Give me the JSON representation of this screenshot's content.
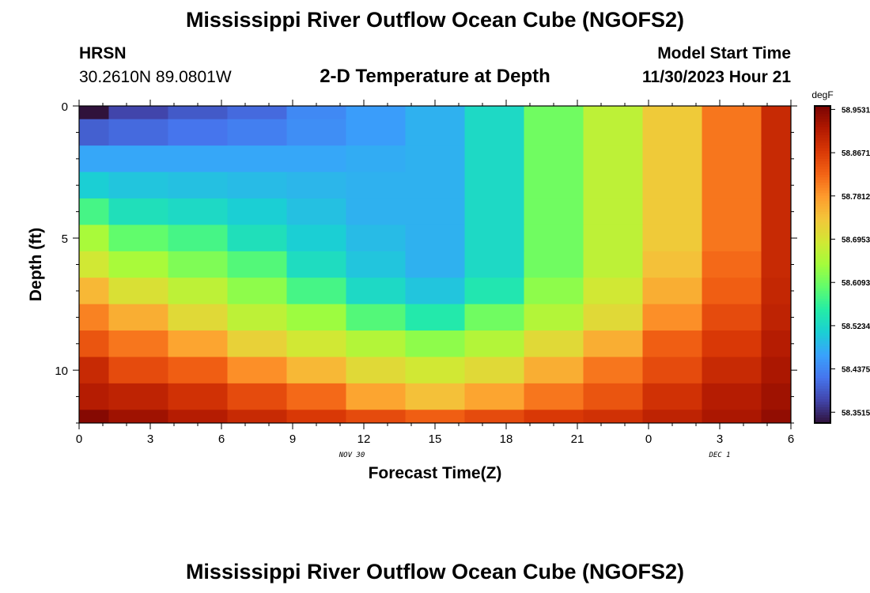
{
  "header": {
    "title": "Mississippi River Outflow Ocean Cube (NGOFS2)",
    "station": "HRSN",
    "coords": "30.2610N  89.0801W",
    "subtitle": "2-D Temperature at Depth",
    "model_start_label": "Model Start Time",
    "model_start_value": "11/30/2023 Hour 21"
  },
  "footer": {
    "title": "Mississippi River Outflow Ocean Cube (NGOFS2)"
  },
  "chart_data": {
    "type": "heatmap",
    "title": "2-D Temperature at Depth",
    "xlabel": "Forecast Time(Z)",
    "ylabel": "Depth (ft)",
    "x_ticks": [
      "0",
      "3",
      "6",
      "9",
      "12",
      "15",
      "18",
      "21",
      "0",
      "3",
      "6"
    ],
    "x_tick_hours": [
      0,
      3,
      6,
      9,
      12,
      15,
      18,
      21,
      24,
      27,
      30
    ],
    "date_labels": [
      {
        "text": "NOV 30",
        "hour": 11.5
      },
      {
        "text": "DEC 1",
        "hour": 27.0
      }
    ],
    "y_ticks": [
      "0",
      "5",
      "10"
    ],
    "y_tick_values": [
      0,
      5,
      10
    ],
    "xlim": [
      0,
      30
    ],
    "ylim": [
      0,
      12
    ],
    "column_edges_hours": [
      0,
      1.25,
      3.75,
      6.25,
      8.75,
      11.25,
      13.75,
      16.25,
      18.75,
      21.25,
      23.75,
      26.25,
      28.75,
      30
    ],
    "depth_edges_ft": [
      0,
      0.5,
      1.5,
      2.5,
      3.5,
      4.5,
      5.5,
      6.5,
      7.5,
      8.5,
      9.5,
      10.5,
      11.5,
      12
    ],
    "values_degF": [
      [
        58.33,
        58.375,
        58.395,
        58.41,
        58.44,
        58.46,
        58.48,
        58.525,
        58.61,
        58.67,
        58.73,
        58.81,
        58.89
      ],
      [
        58.4,
        58.41,
        58.42,
        58.43,
        58.445,
        58.46,
        58.48,
        58.525,
        58.61,
        58.67,
        58.73,
        58.81,
        58.89
      ],
      [
        58.47,
        58.47,
        58.47,
        58.47,
        58.47,
        58.475,
        58.48,
        58.525,
        58.61,
        58.67,
        58.73,
        58.81,
        58.89
      ],
      [
        58.51,
        58.5,
        58.495,
        58.49,
        58.485,
        58.48,
        58.48,
        58.525,
        58.61,
        58.67,
        58.73,
        58.81,
        58.89
      ],
      [
        58.58,
        58.535,
        58.525,
        58.51,
        58.495,
        58.48,
        58.48,
        58.525,
        58.61,
        58.67,
        58.73,
        58.81,
        58.89
      ],
      [
        58.65,
        58.6,
        58.58,
        58.535,
        58.51,
        58.49,
        58.48,
        58.525,
        58.61,
        58.67,
        58.73,
        58.81,
        58.89
      ],
      [
        58.69,
        58.65,
        58.62,
        58.59,
        58.53,
        58.5,
        58.48,
        58.525,
        58.61,
        58.67,
        58.74,
        58.82,
        58.89
      ],
      [
        58.75,
        58.7,
        58.67,
        58.63,
        58.58,
        58.525,
        58.5,
        58.545,
        58.63,
        58.69,
        58.76,
        58.83,
        58.895
      ],
      [
        58.8,
        58.76,
        58.71,
        58.67,
        58.64,
        58.59,
        58.55,
        58.61,
        58.66,
        58.71,
        58.79,
        58.85,
        58.9
      ],
      [
        58.84,
        58.81,
        58.77,
        58.72,
        58.69,
        58.66,
        58.63,
        58.66,
        58.71,
        58.76,
        58.83,
        58.87,
        58.91
      ],
      [
        58.89,
        58.85,
        58.83,
        58.79,
        58.75,
        58.71,
        58.69,
        58.71,
        58.76,
        58.81,
        58.85,
        58.89,
        58.92
      ],
      [
        58.91,
        58.9,
        58.88,
        58.85,
        58.82,
        58.77,
        58.74,
        58.77,
        58.81,
        58.84,
        58.88,
        58.91,
        58.93
      ],
      [
        58.95,
        58.93,
        58.91,
        58.89,
        58.87,
        58.85,
        58.83,
        58.85,
        58.87,
        58.88,
        58.9,
        58.92,
        58.94
      ]
    ],
    "colorbar": {
      "unit": "degF",
      "min": 58.33,
      "max": 58.96,
      "tick_values": [
        58.3515,
        58.4375,
        58.5234,
        58.6093,
        58.6953,
        58.7812,
        58.8671,
        58.9531
      ],
      "tick_labels": [
        "58.3515",
        "58.4375",
        "58.5234",
        "58.6093",
        "58.6953",
        "58.7812",
        "58.8671",
        "58.9531"
      ]
    },
    "colormap_stops": [
      "#30123b",
      "#4145ab",
      "#4675ed",
      "#39a2fc",
      "#1bcfd4",
      "#24eca6",
      "#61fc6c",
      "#a4fc3b",
      "#d1e834",
      "#f3c63a",
      "#fe9b2d",
      "#f36315",
      "#d93806",
      "#b11901",
      "#7a0402"
    ]
  }
}
